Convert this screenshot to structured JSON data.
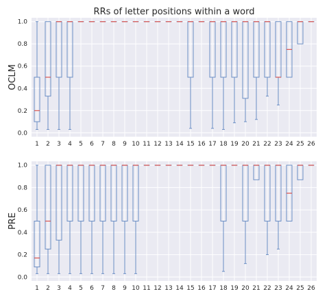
{
  "chart_data": [
    {
      "type": "box",
      "title": "RRs of letter positions within a word",
      "ylabel": "OCLM",
      "xlabel": "",
      "ylim": [
        0,
        1.0
      ],
      "yticks": [
        "0.0",
        "0.2",
        "0.4",
        "0.6",
        "0.8",
        "1.0"
      ],
      "categories": [
        "1",
        "2",
        "3",
        "4",
        "5",
        "6",
        "7",
        "8",
        "9",
        "10",
        "11",
        "12",
        "13",
        "14",
        "15",
        "16",
        "17",
        "18",
        "19",
        "20",
        "21",
        "22",
        "23",
        "24",
        "25",
        "26"
      ],
      "boxes": [
        {
          "min": 0.03,
          "q1": 0.1,
          "median": 0.2,
          "q3": 0.5,
          "max": 1.0
        },
        {
          "min": 0.03,
          "q1": 0.33,
          "median": 0.5,
          "q3": 1.0,
          "max": 1.0
        },
        {
          "min": 0.03,
          "q1": 0.5,
          "median": 1.0,
          "q3": 1.0,
          "max": 1.0
        },
        {
          "min": 0.03,
          "q1": 0.5,
          "median": 1.0,
          "q3": 1.0,
          "max": 1.0
        },
        {
          "min": 1.0,
          "q1": 1.0,
          "median": 1.0,
          "q3": 1.0,
          "max": 1.0
        },
        {
          "min": 1.0,
          "q1": 1.0,
          "median": 1.0,
          "q3": 1.0,
          "max": 1.0
        },
        {
          "min": 1.0,
          "q1": 1.0,
          "median": 1.0,
          "q3": 1.0,
          "max": 1.0
        },
        {
          "min": 1.0,
          "q1": 1.0,
          "median": 1.0,
          "q3": 1.0,
          "max": 1.0
        },
        {
          "min": 1.0,
          "q1": 1.0,
          "median": 1.0,
          "q3": 1.0,
          "max": 1.0
        },
        {
          "min": 1.0,
          "q1": 1.0,
          "median": 1.0,
          "q3": 1.0,
          "max": 1.0
        },
        {
          "min": 1.0,
          "q1": 1.0,
          "median": 1.0,
          "q3": 1.0,
          "max": 1.0
        },
        {
          "min": 1.0,
          "q1": 1.0,
          "median": 1.0,
          "q3": 1.0,
          "max": 1.0
        },
        {
          "min": 1.0,
          "q1": 1.0,
          "median": 1.0,
          "q3": 1.0,
          "max": 1.0
        },
        {
          "min": 1.0,
          "q1": 1.0,
          "median": 1.0,
          "q3": 1.0,
          "max": 1.0
        },
        {
          "min": 0.04,
          "q1": 0.5,
          "median": 1.0,
          "q3": 1.0,
          "max": 1.0
        },
        {
          "min": 1.0,
          "q1": 1.0,
          "median": 1.0,
          "q3": 1.0,
          "max": 1.0
        },
        {
          "min": 0.04,
          "q1": 0.5,
          "median": 1.0,
          "q3": 1.0,
          "max": 1.0
        },
        {
          "min": 0.03,
          "q1": 0.5,
          "median": 1.0,
          "q3": 1.0,
          "max": 1.0
        },
        {
          "min": 0.09,
          "q1": 0.5,
          "median": 1.0,
          "q3": 1.0,
          "max": 1.0
        },
        {
          "min": 0.1,
          "q1": 0.31,
          "median": 1.0,
          "q3": 1.0,
          "max": 1.0
        },
        {
          "min": 0.12,
          "q1": 0.5,
          "median": 1.0,
          "q3": 1.0,
          "max": 1.0
        },
        {
          "min": 0.33,
          "q1": 0.5,
          "median": 1.0,
          "q3": 1.0,
          "max": 1.0
        },
        {
          "min": 0.25,
          "q1": 0.5,
          "median": 0.5,
          "q3": 1.0,
          "max": 1.0
        },
        {
          "min": 0.5,
          "q1": 0.5,
          "median": 0.75,
          "q3": 1.0,
          "max": 1.0
        },
        {
          "min": 0.8,
          "q1": 0.8,
          "median": 1.0,
          "q3": 1.0,
          "max": 1.0
        },
        {
          "min": 1.0,
          "q1": 1.0,
          "median": 1.0,
          "q3": 1.0,
          "max": 1.0
        }
      ]
    },
    {
      "type": "box",
      "title": "",
      "ylabel": "PRE",
      "xlabel": "",
      "ylim": [
        0,
        1.0
      ],
      "yticks": [
        "0.0",
        "0.2",
        "0.4",
        "0.6",
        "0.8",
        "1.0"
      ],
      "categories": [
        "1",
        "2",
        "3",
        "4",
        "5",
        "6",
        "7",
        "8",
        "9",
        "10",
        "11",
        "12",
        "13",
        "14",
        "15",
        "16",
        "17",
        "18",
        "19",
        "20",
        "21",
        "22",
        "23",
        "24",
        "25",
        "26"
      ],
      "boxes": [
        {
          "min": 0.03,
          "q1": 0.09,
          "median": 0.17,
          "q3": 0.5,
          "max": 1.0
        },
        {
          "min": 0.03,
          "q1": 0.25,
          "median": 0.5,
          "q3": 1.0,
          "max": 1.0
        },
        {
          "min": 0.03,
          "q1": 0.33,
          "median": 1.0,
          "q3": 1.0,
          "max": 1.0
        },
        {
          "min": 0.03,
          "q1": 0.5,
          "median": 1.0,
          "q3": 1.0,
          "max": 1.0
        },
        {
          "min": 0.03,
          "q1": 0.5,
          "median": 1.0,
          "q3": 1.0,
          "max": 1.0
        },
        {
          "min": 0.03,
          "q1": 0.5,
          "median": 1.0,
          "q3": 1.0,
          "max": 1.0
        },
        {
          "min": 0.03,
          "q1": 0.5,
          "median": 1.0,
          "q3": 1.0,
          "max": 1.0
        },
        {
          "min": 0.03,
          "q1": 0.5,
          "median": 1.0,
          "q3": 1.0,
          "max": 1.0
        },
        {
          "min": 0.03,
          "q1": 0.5,
          "median": 1.0,
          "q3": 1.0,
          "max": 1.0
        },
        {
          "min": 0.03,
          "q1": 0.5,
          "median": 1.0,
          "q3": 1.0,
          "max": 1.0
        },
        {
          "min": 1.0,
          "q1": 1.0,
          "median": 1.0,
          "q3": 1.0,
          "max": 1.0
        },
        {
          "min": 1.0,
          "q1": 1.0,
          "median": 1.0,
          "q3": 1.0,
          "max": 1.0
        },
        {
          "min": 1.0,
          "q1": 1.0,
          "median": 1.0,
          "q3": 1.0,
          "max": 1.0
        },
        {
          "min": 1.0,
          "q1": 1.0,
          "median": 1.0,
          "q3": 1.0,
          "max": 1.0
        },
        {
          "min": 1.0,
          "q1": 1.0,
          "median": 1.0,
          "q3": 1.0,
          "max": 1.0
        },
        {
          "min": 1.0,
          "q1": 1.0,
          "median": 1.0,
          "q3": 1.0,
          "max": 1.0
        },
        {
          "min": 1.0,
          "q1": 1.0,
          "median": 1.0,
          "q3": 1.0,
          "max": 1.0
        },
        {
          "min": 0.05,
          "q1": 0.5,
          "median": 1.0,
          "q3": 1.0,
          "max": 1.0
        },
        {
          "min": 1.0,
          "q1": 1.0,
          "median": 1.0,
          "q3": 1.0,
          "max": 1.0
        },
        {
          "min": 0.12,
          "q1": 0.5,
          "median": 1.0,
          "q3": 1.0,
          "max": 1.0
        },
        {
          "min": 0.87,
          "q1": 0.87,
          "median": 1.0,
          "q3": 1.0,
          "max": 1.0
        },
        {
          "min": 0.2,
          "q1": 0.5,
          "median": 1.0,
          "q3": 1.0,
          "max": 1.0
        },
        {
          "min": 0.25,
          "q1": 0.5,
          "median": 1.0,
          "q3": 1.0,
          "max": 1.0
        },
        {
          "min": 0.5,
          "q1": 0.5,
          "median": 0.75,
          "q3": 1.0,
          "max": 1.0
        },
        {
          "min": 0.87,
          "q1": 0.87,
          "median": 1.0,
          "q3": 1.0,
          "max": 1.0
        },
        {
          "min": 1.0,
          "q1": 1.0,
          "median": 1.0,
          "q3": 1.0,
          "max": 1.0
        }
      ]
    }
  ],
  "colors": {
    "plot_bg": "#eaeaf2",
    "grid": "#ffffff",
    "box": "#6b8ec4",
    "median": "#d9534f",
    "text": "#262626"
  }
}
